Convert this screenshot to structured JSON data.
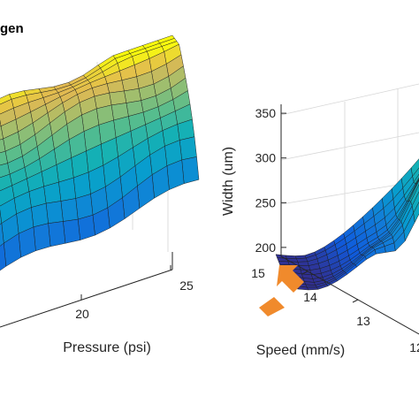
{
  "chart_data": [
    {
      "type": "surface",
      "title": "gen",
      "xlabel": "Pressure (psi)",
      "ylabel": "",
      "zlabel": "",
      "x_ticks": [
        "20",
        "25"
      ],
      "xlim": [
        15,
        25
      ],
      "colormap": "parula",
      "grid": true
    },
    {
      "type": "surface",
      "title": "",
      "xlabel": "Speed (mm/s)",
      "zlabel": "Width (um)",
      "x_ticks": [
        "15",
        "14",
        "13",
        "12"
      ],
      "z_ticks": [
        "200",
        "250",
        "300",
        "350"
      ],
      "xlim": [
        12,
        15
      ],
      "zlim": [
        190,
        360
      ],
      "colormap": "parula",
      "grid": true,
      "annotation": "orange arrow pointing at the corner Speed 15 mm/s, Width 200 um"
    }
  ],
  "colors": {
    "arrow": "#f08a2c",
    "axis": "#262626"
  }
}
